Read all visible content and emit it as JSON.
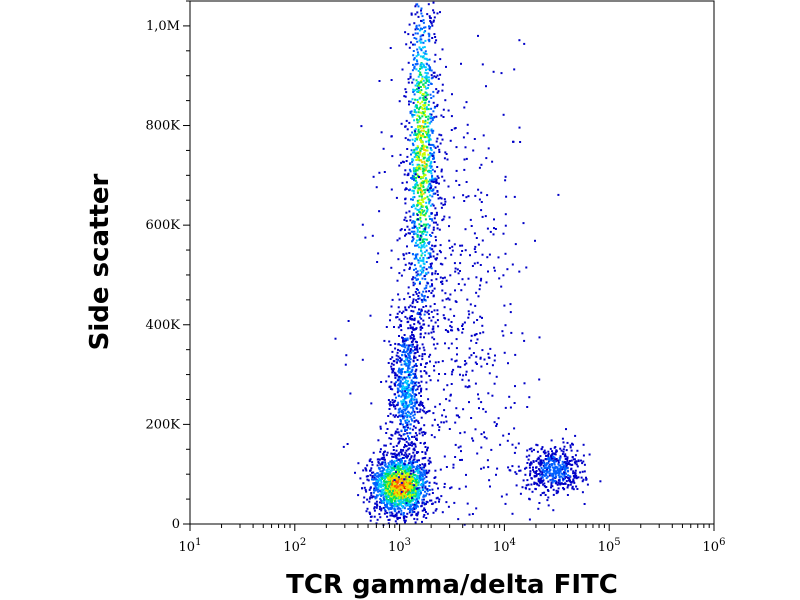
{
  "chart_data": {
    "type": "heatmap",
    "title": "",
    "xlabel": "TCR gamma/delta FITC",
    "ylabel": "Side scatter",
    "x_scale": "log",
    "xlim": [
      10,
      1000000
    ],
    "ylim": [
      0,
      1050000
    ],
    "x_ticks": [
      {
        "value": 10,
        "base": "10",
        "exp": "1"
      },
      {
        "value": 100,
        "base": "10",
        "exp": "2"
      },
      {
        "value": 1000,
        "base": "10",
        "exp": "3"
      },
      {
        "value": 10000,
        "base": "10",
        "exp": "4"
      },
      {
        "value": 100000,
        "base": "10",
        "exp": "5"
      },
      {
        "value": 1000000,
        "base": "10",
        "exp": "6"
      }
    ],
    "y_ticks": [
      {
        "value": 0,
        "label": "0"
      },
      {
        "value": 200000,
        "label": "200K"
      },
      {
        "value": 400000,
        "label": "400K"
      },
      {
        "value": 600000,
        "label": "600K"
      },
      {
        "value": 800000,
        "label": "800K"
      },
      {
        "value": 1000000,
        "label": "1,0M"
      }
    ],
    "grid": false,
    "colormap": [
      "#0000c8",
      "#0060ff",
      "#00c8ff",
      "#00e060",
      "#c8ff00",
      "#ffc800",
      "#ff5000",
      "#d00000"
    ],
    "populations": [
      {
        "x_center": 1000,
        "y_center": 80000,
        "x_spread": 0.14,
        "y_spread": 30000,
        "weight": 1.0
      },
      {
        "x_center": 1150,
        "y_center": 270000,
        "x_spread": 0.08,
        "y_spread": 80000,
        "weight": 0.35
      },
      {
        "x_center": 1600,
        "y_center": 740000,
        "x_spread": 0.07,
        "y_spread": 180000,
        "weight": 0.75
      },
      {
        "x_center": 30000,
        "y_center": 110000,
        "x_spread": 0.14,
        "y_spread": 25000,
        "weight": 0.25
      }
    ]
  }
}
